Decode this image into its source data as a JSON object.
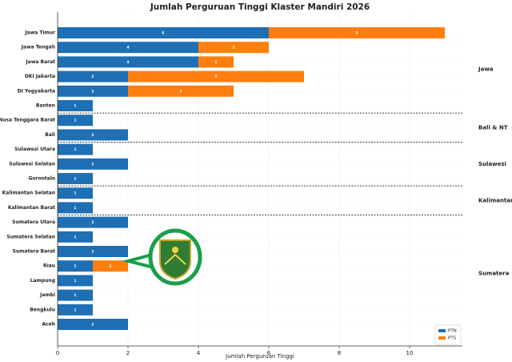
{
  "chart_data": {
    "type": "bar",
    "orientation": "horizontal",
    "stacked": true,
    "title": "Jumlah Perguruan Tinggi Klaster Mandiri 2026",
    "xlabel": "Jumlah Perguruan Tinggi",
    "categories": [
      "Jawa Timur",
      "Jawa Tengah",
      "Jawa Barat",
      "DKI Jakarta",
      "DI Yogyakarta",
      "Banten",
      "Nusa Tenggara Barat",
      "Bali",
      "Sulawesi Utara",
      "Sulawesi Selatan",
      "Gorontalo",
      "Kalimantan Selatan",
      "Kalimantan Barat",
      "Sumatera Utara",
      "Sumatera Selatan",
      "Sumatera Barat",
      "Riau",
      "Lampung",
      "Jambi",
      "Bengkulu",
      "Aceh"
    ],
    "series": [
      {
        "name": "PTN",
        "color": "#1f6fb4",
        "values": [
          6,
          4,
          4,
          2,
          2,
          1,
          1,
          2,
          1,
          2,
          1,
          1,
          1,
          2,
          1,
          2,
          1,
          1,
          1,
          1,
          2
        ]
      },
      {
        "name": "PTS",
        "color": "#ff7f0e",
        "values": [
          5,
          2,
          1,
          5,
          3,
          null,
          null,
          null,
          null,
          null,
          null,
          null,
          null,
          null,
          null,
          null,
          1,
          null,
          null,
          null,
          null
        ]
      }
    ],
    "groups": [
      {
        "label": "Jawa",
        "members": [
          "Jawa Timur",
          "Jawa Tengah",
          "Jawa Barat",
          "DKI Jakarta",
          "DI Yogyakarta",
          "Banten"
        ]
      },
      {
        "label": "Bali & NT",
        "members": [
          "Nusa Tenggara Barat",
          "Bali"
        ]
      },
      {
        "label": "Sulawesi",
        "members": [
          "Sulawesi Utara",
          "Sulawesi Selatan",
          "Gorontalo"
        ]
      },
      {
        "label": "Kalimantan",
        "members": [
          "Kalimantan Selatan",
          "Kalimantan Barat"
        ]
      },
      {
        "label": "Sumatera",
        "members": [
          "Sumatera Utara",
          "Sumatera Selatan",
          "Sumatera Barat",
          "Riau",
          "Lampung",
          "Jambi",
          "Bengkulu",
          "Aceh"
        ]
      }
    ],
    "xlim": [
      0,
      11.5
    ],
    "xticks": [
      0,
      2,
      4,
      6,
      8,
      10
    ],
    "grid": true,
    "legend": "lower right"
  }
}
